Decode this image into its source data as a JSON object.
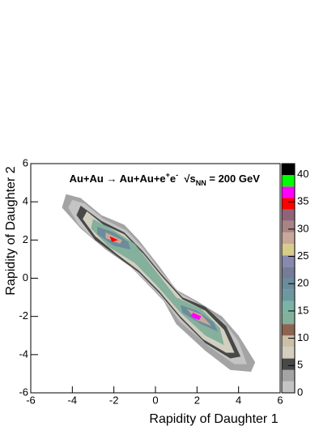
{
  "chart_data": {
    "type": "contour",
    "annotation": [
      "Au+Au → Au+Au+e",
      "+",
      "e",
      "-",
      "  √s",
      "NN",
      " = 200 GeV"
    ],
    "x_label": "Rapidity of Daughter 1",
    "y_label": "Rapidity of Daughter 2",
    "xlim": [
      -6,
      6
    ],
    "ylim": [
      -6,
      6
    ],
    "xticks": [
      -6,
      -4,
      -2,
      0,
      2,
      4,
      6
    ],
    "yticks": [
      -6,
      -4,
      -2,
      0,
      2,
      4,
      6
    ],
    "zlim": [
      0,
      42
    ],
    "zticks": [
      0,
      5,
      10,
      15,
      20,
      25,
      30,
      35,
      40
    ],
    "palette": [
      "#c4c4c4",
      "#a4a4a4",
      "#484848",
      "#d2cfc0",
      "#cbbfa8",
      "#8c6450",
      "#84b09c",
      "#7ab4a4",
      "#6e98a0",
      "#6c8c9c",
      "#747c98",
      "#8888b0",
      "#d8cc8c",
      "#c8a898",
      "#a88484",
      "#906478",
      "#ff0000",
      "#ff00ff",
      "#00ff00",
      "#000000"
    ],
    "contours": [
      {
        "level": 2.5,
        "points": [
          [
            -4.3,
            4.4
          ],
          [
            -3.6,
            4.2
          ],
          [
            -2.6,
            3.3
          ],
          [
            -1.5,
            2.8
          ],
          [
            -0.8,
            2.0
          ],
          [
            0.2,
            0.6
          ],
          [
            1.0,
            -0.6
          ],
          [
            2.0,
            -1.2
          ],
          [
            3.2,
            -2.0
          ],
          [
            4.0,
            -3.0
          ],
          [
            4.8,
            -4.4
          ],
          [
            4.6,
            -4.9
          ],
          [
            3.6,
            -4.8
          ],
          [
            2.4,
            -3.8
          ],
          [
            1.0,
            -2.4
          ],
          [
            0.4,
            -1.2
          ],
          [
            -0.3,
            -0.4
          ],
          [
            -1.2,
            0.6
          ],
          [
            -2.4,
            1.5
          ],
          [
            -3.6,
            2.6
          ],
          [
            -4.5,
            3.7
          ]
        ]
      },
      {
        "level": 1,
        "points": [
          [
            -4.0,
            4.1
          ],
          [
            -3.4,
            3.9
          ],
          [
            -2.5,
            3.1
          ],
          [
            -1.4,
            2.5
          ],
          [
            -0.6,
            1.6
          ],
          [
            0.3,
            0.3
          ],
          [
            1.2,
            -0.8
          ],
          [
            2.2,
            -1.4
          ],
          [
            3.3,
            -2.3
          ],
          [
            4.0,
            -3.3
          ],
          [
            4.4,
            -4.5
          ],
          [
            3.8,
            -4.5
          ],
          [
            2.6,
            -3.6
          ],
          [
            1.2,
            -2.3
          ],
          [
            0.3,
            -1.0
          ],
          [
            -0.5,
            -0.1
          ],
          [
            -1.4,
            0.8
          ],
          [
            -2.6,
            1.7
          ],
          [
            -3.7,
            2.8
          ],
          [
            -4.2,
            3.7
          ]
        ]
      },
      {
        "level": 5,
        "points": [
          [
            -3.6,
            3.8
          ],
          [
            -2.6,
            3.0
          ],
          [
            -1.5,
            2.4
          ],
          [
            -0.6,
            1.4
          ],
          [
            0.3,
            0.2
          ],
          [
            1.3,
            -1.0
          ],
          [
            2.4,
            -1.5
          ],
          [
            3.4,
            -2.5
          ],
          [
            4.1,
            -4.1
          ],
          [
            3.6,
            -4.2
          ],
          [
            2.4,
            -3.4
          ],
          [
            1.2,
            -2.1
          ],
          [
            0.2,
            -0.8
          ],
          [
            -0.8,
            0.3
          ],
          [
            -1.8,
            1.1
          ],
          [
            -2.9,
            2.0
          ],
          [
            -3.8,
            3.3
          ]
        ]
      },
      {
        "level": 7,
        "points": [
          [
            -3.3,
            3.5
          ],
          [
            -2.5,
            2.8
          ],
          [
            -1.5,
            2.3
          ],
          [
            -0.6,
            1.3
          ],
          [
            0.3,
            0.1
          ],
          [
            1.3,
            -1.1
          ],
          [
            2.4,
            -1.7
          ],
          [
            3.3,
            -2.7
          ],
          [
            3.8,
            -3.9
          ],
          [
            3.4,
            -3.9
          ],
          [
            2.3,
            -3.2
          ],
          [
            1.2,
            -2.0
          ],
          [
            0.2,
            -0.7
          ],
          [
            -0.8,
            0.4
          ],
          [
            -1.9,
            1.3
          ],
          [
            -2.9,
            2.2
          ],
          [
            -3.5,
            3.1
          ]
        ]
      },
      {
        "level": 13,
        "points": [
          [
            -3.0,
            3.1
          ],
          [
            -2.0,
            2.5
          ],
          [
            -1.0,
            1.8
          ],
          [
            0,
            0.4
          ],
          [
            1.0,
            -1.0
          ],
          [
            2.2,
            -1.6
          ],
          [
            3.1,
            -2.6
          ],
          [
            3.3,
            -3.5
          ],
          [
            2.4,
            -3.0
          ],
          [
            1.2,
            -1.8
          ],
          [
            0,
            -0.3
          ],
          [
            -1.0,
            0.8
          ],
          [
            -2.2,
            1.6
          ],
          [
            -3.1,
            2.6
          ]
        ]
      },
      {
        "level": 19,
        "points": [
          [
            -2.8,
            2.7
          ],
          [
            -2.0,
            2.4
          ],
          [
            -1.3,
            1.9
          ],
          [
            -1.2,
            1.5
          ],
          [
            -2.0,
            1.7
          ],
          [
            -2.8,
            2.3
          ]
        ]
      },
      {
        "level": 19,
        "points": [
          [
            1.2,
            -1.4
          ],
          [
            2.0,
            -1.7
          ],
          [
            2.8,
            -2.3
          ],
          [
            3.0,
            -2.8
          ],
          [
            2.2,
            -2.4
          ],
          [
            1.3,
            -1.8
          ]
        ]
      },
      {
        "level": 28,
        "points": [
          [
            -2.4,
            2.4
          ],
          [
            -1.6,
            2.0
          ],
          [
            -1.7,
            1.8
          ],
          [
            -2.4,
            2.1
          ]
        ]
      },
      {
        "level": 28,
        "points": [
          [
            1.5,
            -1.6
          ],
          [
            2.2,
            -1.9
          ],
          [
            2.7,
            -2.5
          ],
          [
            2.0,
            -2.2
          ]
        ]
      },
      {
        "level": 35,
        "points": [
          [
            -2.2,
            2.2
          ],
          [
            -1.8,
            2.0
          ],
          [
            -2.1,
            1.9
          ]
        ]
      },
      {
        "level": 37,
        "points": [
          [
            1.8,
            -1.8
          ],
          [
            2.2,
            -2.0
          ],
          [
            2.1,
            -2.2
          ],
          [
            1.7,
            -2.0
          ]
        ]
      }
    ]
  }
}
